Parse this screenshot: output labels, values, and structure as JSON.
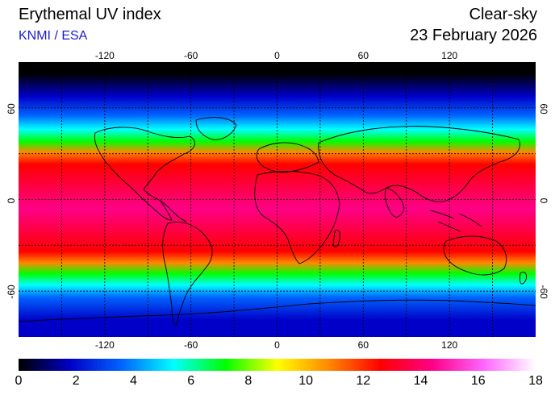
{
  "header": {
    "title": "Erythemal UV index",
    "subtitle": "KNMI / ESA",
    "right_title": "Clear-sky",
    "date": "23 February 2026"
  },
  "map": {
    "lon_ticks": [
      "-120",
      "-60",
      "0",
      "60",
      "120"
    ],
    "lat_ticks": [
      "60",
      "0",
      "-60"
    ],
    "lon_range": [
      -180,
      180
    ],
    "lat_range": [
      -90,
      90
    ],
    "gridlines": "dotted every 30 degrees",
    "uv_bands": [
      {
        "lat_from": 90,
        "lat_to": 75,
        "uv": 0
      },
      {
        "lat_from": 75,
        "lat_to": 60,
        "uv": 2
      },
      {
        "lat_from": 60,
        "lat_to": 50,
        "uv": 4
      },
      {
        "lat_from": 50,
        "lat_to": 42,
        "uv": 6
      },
      {
        "lat_from": 42,
        "lat_to": 34,
        "uv": 8
      },
      {
        "lat_from": 34,
        "lat_to": 28,
        "uv": 10
      },
      {
        "lat_from": 28,
        "lat_to": 18,
        "uv": 12
      },
      {
        "lat_from": 18,
        "lat_to": -30,
        "uv": 14
      },
      {
        "lat_from": -30,
        "lat_to": -38,
        "uv": 12
      },
      {
        "lat_from": -38,
        "lat_to": -45,
        "uv": 10
      },
      {
        "lat_from": -45,
        "lat_to": -52,
        "uv": 8
      },
      {
        "lat_from": -52,
        "lat_to": -60,
        "uv": 6
      },
      {
        "lat_from": -60,
        "lat_to": -68,
        "uv": 4
      },
      {
        "lat_from": -68,
        "lat_to": -90,
        "uv": 2
      }
    ]
  },
  "colorbar": {
    "labels": [
      "0",
      "2",
      "4",
      "6",
      "8",
      "10",
      "12",
      "14",
      "16",
      "18"
    ],
    "min": 0,
    "max": 18,
    "colors": [
      "#000000",
      "#0000c8",
      "#0064ff",
      "#00ffff",
      "#00ff00",
      "#ffff00",
      "#ff8800",
      "#ff0000",
      "#ff0088",
      "#ff66ff",
      "#ffffff"
    ]
  }
}
